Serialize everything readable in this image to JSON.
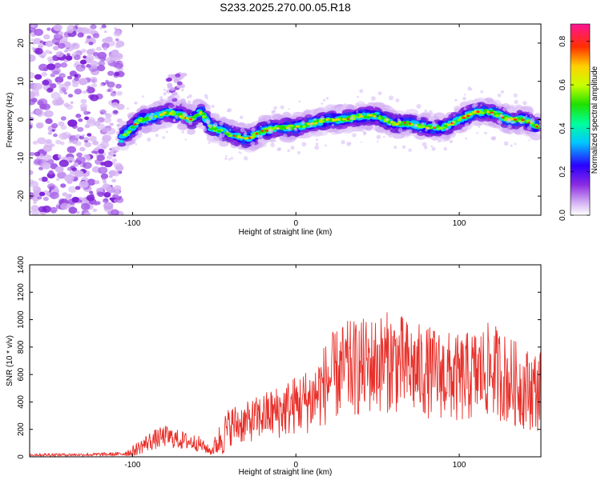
{
  "figure_title": "S233.2025.270.00.05.R18",
  "chart_data": [
    {
      "type": "heatmap",
      "name": "spectrogram",
      "xlabel": "Height of straight line (km)",
      "ylabel": "Frequency (Hz)",
      "xlim": [
        -163,
        150
      ],
      "ylim": [
        -25,
        25
      ],
      "xticks": [
        -100,
        0,
        100
      ],
      "yticks": [
        -20,
        -10,
        0,
        10,
        20
      ],
      "colorbar": {
        "label": "Normalized spectral amplitude",
        "range": [
          0.0,
          0.88
        ],
        "ticks": [
          0.0,
          0.2,
          0.4,
          0.6,
          0.8
        ]
      },
      "noise_region_x": [
        -163,
        -107
      ],
      "ridge": {
        "x": [
          -107,
          -100,
          -95,
          -85,
          -78,
          -70,
          -64,
          -58,
          -52,
          -45,
          -40,
          -30,
          -20,
          -10,
          0,
          10,
          20,
          30,
          40,
          50,
          60,
          70,
          80,
          85,
          90,
          100,
          110,
          120,
          130,
          140,
          148
        ],
        "freq": [
          -5,
          -2,
          0,
          1,
          2,
          1,
          0,
          2,
          -2,
          -3,
          -4,
          -5,
          -3,
          -2,
          -2,
          -1,
          0,
          0,
          1,
          1,
          -1,
          -1,
          -2,
          -2,
          -2,
          0,
          2,
          2,
          0,
          0,
          -2
        ]
      }
    },
    {
      "type": "line",
      "name": "snr",
      "xlabel": "Height of straight line (km)",
      "ylabel": "SNR (10 * v/v)",
      "xlim": [
        -163,
        150
      ],
      "ylim": [
        0,
        1400
      ],
      "xticks": [
        -100,
        0,
        100
      ],
      "yticks": [
        0,
        200,
        400,
        600,
        800,
        1000,
        1200,
        1400
      ],
      "color": "#e8302a",
      "envelope": {
        "x": [
          -163,
          -130,
          -107,
          -100,
          -90,
          -80,
          -70,
          -60,
          -52,
          -45,
          -40,
          -30,
          -20,
          -10,
          0,
          10,
          20,
          30,
          40,
          50,
          60,
          70,
          80,
          90,
          100,
          110,
          120,
          130,
          140,
          150
        ],
        "mean": [
          15,
          15,
          20,
          40,
          110,
          150,
          120,
          100,
          40,
          150,
          230,
          250,
          300,
          330,
          380,
          420,
          560,
          640,
          650,
          680,
          700,
          640,
          620,
          600,
          560,
          600,
          640,
          560,
          500,
          480
        ],
        "spread": [
          12,
          10,
          15,
          40,
          70,
          80,
          70,
          60,
          30,
          150,
          150,
          150,
          170,
          200,
          220,
          250,
          320,
          350,
          360,
          360,
          380,
          350,
          340,
          330,
          330,
          340,
          350,
          330,
          300,
          300
        ]
      }
    }
  ]
}
